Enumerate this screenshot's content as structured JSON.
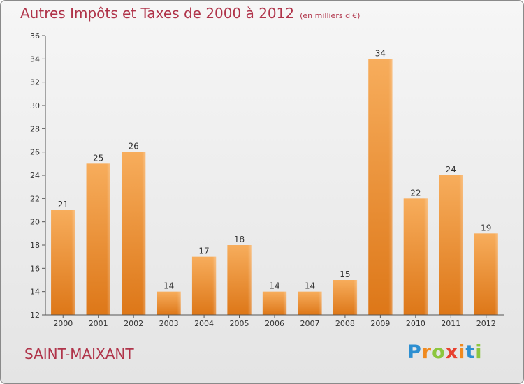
{
  "chart_data": {
    "type": "bar",
    "title": "Autres Impôts et Taxes de 2000 à 2012",
    "subtitle": "(en milliers d'€)",
    "categories": [
      "2000",
      "2001",
      "2002",
      "2003",
      "2004",
      "2005",
      "2006",
      "2007",
      "2008",
      "2009",
      "2010",
      "2011",
      "2012"
    ],
    "values": [
      21,
      25,
      26,
      14,
      17,
      18,
      14,
      14,
      15,
      34,
      22,
      24,
      19
    ],
    "ylim": [
      12,
      36
    ],
    "yticks": [
      12,
      14,
      16,
      18,
      20,
      22,
      24,
      26,
      28,
      30,
      32,
      34,
      36
    ],
    "xlabel": "",
    "ylabel": "",
    "grid": false,
    "bar_color": "#f0a04b",
    "bar_color_dark": "#e07c1e"
  },
  "location": "SAINT-MAIXANT",
  "brand": {
    "letters": [
      "P",
      "r",
      "o",
      "x",
      "i",
      "t",
      "i"
    ],
    "colors": [
      "#2d8fd1",
      "#f08a1f",
      "#8cc63e",
      "#e8402f",
      "#f08a1f",
      "#2d8fd1",
      "#8cc63e"
    ]
  },
  "colors": {
    "title": "#b0344a",
    "axis": "#555555"
  }
}
